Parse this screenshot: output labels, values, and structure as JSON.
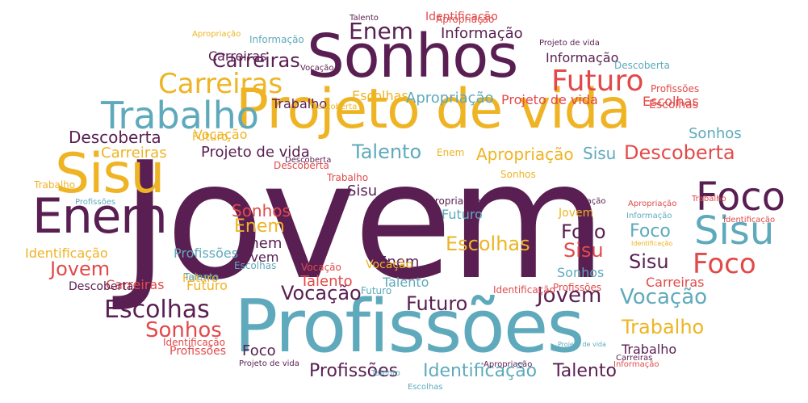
{
  "palette": {
    "purple": "#5a1f52",
    "yellow": "#eeb424",
    "teal": "#5eaabc",
    "red": "#e24a4a"
  },
  "words": [
    {
      "text": "Jovem",
      "color": "purple"
    },
    {
      "text": "Profissões",
      "color": "teal"
    },
    {
      "text": "Projeto de vida",
      "color": "yellow"
    },
    {
      "text": "Sonhos",
      "color": "purple"
    },
    {
      "text": "Sisu",
      "color": "yellow"
    },
    {
      "text": "Enem",
      "color": "purple"
    },
    {
      "text": "Foco",
      "color": "purple"
    },
    {
      "text": "Sisu",
      "color": "teal"
    },
    {
      "text": "Foco",
      "color": "red"
    },
    {
      "text": "Trabalho",
      "color": "teal"
    },
    {
      "text": "Carreiras",
      "color": "yellow"
    },
    {
      "text": "Futuro",
      "color": "red"
    },
    {
      "text": "Enem",
      "color": "purple"
    },
    {
      "text": "Carreiras",
      "color": "purple"
    },
    {
      "text": "Informação",
      "color": "purple"
    },
    {
      "text": "Escolhas",
      "color": "purple"
    },
    {
      "text": "Sonhos",
      "color": "red"
    },
    {
      "text": "Vocação",
      "color": "purple"
    },
    {
      "text": "Vocação",
      "color": "teal"
    },
    {
      "text": "Futuro",
      "color": "purple"
    },
    {
      "text": "Jovem",
      "color": "purple"
    },
    {
      "text": "Trabalho",
      "color": "yellow"
    },
    {
      "text": "Talento",
      "color": "teal"
    },
    {
      "text": "Descoberta",
      "color": "red"
    },
    {
      "text": "Apropriação",
      "color": "yellow"
    },
    {
      "text": "Escolhas",
      "color": "yellow"
    },
    {
      "text": "Profissões",
      "color": "purple"
    },
    {
      "text": "Identificação",
      "color": "teal"
    },
    {
      "text": "Talento",
      "color": "purple"
    },
    {
      "text": "Jovem",
      "color": "red"
    },
    {
      "text": "Descoberta",
      "color": "purple"
    },
    {
      "text": "Carreiras",
      "color": "yellow"
    },
    {
      "text": "Projeto de vida",
      "color": "purple"
    },
    {
      "text": "Sisu",
      "color": "teal"
    },
    {
      "text": "Sisu",
      "color": "purple"
    },
    {
      "text": "Sisu",
      "color": "purple"
    },
    {
      "text": "Sisu",
      "color": "red"
    },
    {
      "text": "Foco",
      "color": "purple"
    },
    {
      "text": "Foco",
      "color": "teal"
    },
    {
      "text": "Enem",
      "color": "yellow"
    },
    {
      "text": "Enem",
      "color": "purple"
    },
    {
      "text": "Enem",
      "color": "purple"
    },
    {
      "text": "Jovem",
      "color": "purple"
    },
    {
      "text": "Jovem",
      "color": "yellow"
    },
    {
      "text": "Futuro",
      "color": "teal"
    },
    {
      "text": "Futuro",
      "color": "yellow"
    },
    {
      "text": "Talento",
      "color": "red"
    },
    {
      "text": "Talento",
      "color": "teal"
    },
    {
      "text": "Sonhos",
      "color": "red"
    },
    {
      "text": "Sonhos",
      "color": "teal"
    },
    {
      "text": "Sonhos",
      "color": "teal"
    },
    {
      "text": "Vocação",
      "color": "yellow"
    },
    {
      "text": "Foco",
      "color": "purple"
    },
    {
      "text": "Trabalho",
      "color": "purple"
    },
    {
      "text": "Identificação",
      "color": "yellow"
    },
    {
      "text": "Profissões",
      "color": "teal"
    },
    {
      "text": "Carreiras",
      "color": "purple"
    },
    {
      "text": "Carreiras",
      "color": "red"
    },
    {
      "text": "Escolhas",
      "color": "red"
    },
    {
      "text": "Trabalho",
      "color": "purple"
    },
    {
      "text": "Apropriação",
      "color": "teal"
    },
    {
      "text": "Projeto de vida",
      "color": "red"
    },
    {
      "text": "Informação",
      "color": "purple"
    },
    {
      "text": "Informação",
      "color": "teal"
    },
    {
      "text": "Escolhas",
      "color": "yellow"
    },
    {
      "text": "Apropriação",
      "color": "red"
    },
    {
      "text": "Identificação",
      "color": "red"
    },
    {
      "text": "Descoberta",
      "color": "purple"
    },
    {
      "text": "Profissões",
      "color": "red"
    },
    {
      "text": "Escolhas",
      "color": "teal"
    },
    {
      "text": "Vocação",
      "color": "yellow"
    },
    {
      "text": "Carreiras",
      "color": "red"
    },
    {
      "text": "Trabalho",
      "color": "red"
    },
    {
      "text": "Descoberta",
      "color": "red"
    },
    {
      "text": "Apropriação",
      "color": "purple"
    },
    {
      "text": "Trabalho",
      "color": "yellow"
    },
    {
      "text": "Futuro",
      "color": "yellow"
    },
    {
      "text": "Escolhas",
      "color": "red"
    },
    {
      "text": "Vocação",
      "color": "red"
    },
    {
      "text": "Talento",
      "color": "teal"
    },
    {
      "text": "Descoberta",
      "color": "teal"
    },
    {
      "text": "Futuro",
      "color": "teal"
    },
    {
      "text": "Identificação",
      "color": "red"
    },
    {
      "text": "Profissões",
      "color": "red"
    },
    {
      "text": "Vocação",
      "color": "purple"
    },
    {
      "text": "Apropriação",
      "color": "red"
    },
    {
      "text": "Informação",
      "color": "teal"
    },
    {
      "text": "Identificação",
      "color": "yellow"
    },
    {
      "text": "Identificação",
      "color": "red"
    },
    {
      "text": "Projeto de vida",
      "color": "purple"
    },
    {
      "text": "Informação",
      "color": "red"
    },
    {
      "text": "Projeto de vida",
      "color": "teal"
    },
    {
      "text": "Projeto de vida",
      "color": "purple"
    },
    {
      "text": "Apropriação",
      "color": "yellow"
    },
    {
      "text": "Descoberta",
      "color": "yellow"
    },
    {
      "text": "Descoberta",
      "color": "purple"
    },
    {
      "text": "Escolhas",
      "color": "teal"
    },
    {
      "text": "Talento",
      "color": "purple"
    },
    {
      "text": "Enem",
      "color": "yellow"
    },
    {
      "text": "Sonhos",
      "color": "yellow"
    },
    {
      "text": "Profissões",
      "color": "red"
    },
    {
      "text": "Identificação",
      "color": "red"
    },
    {
      "text": "Apropriação",
      "color": "purple"
    },
    {
      "text": "Profissões",
      "color": "teal"
    },
    {
      "text": "Carreiras",
      "color": "purple"
    },
    {
      "text": "Vocação",
      "color": "purple"
    },
    {
      "text": "Futuro",
      "color": "yellow"
    },
    {
      "text": "Talento",
      "color": "teal"
    },
    {
      "text": "Trabalho",
      "color": "red"
    }
  ]
}
